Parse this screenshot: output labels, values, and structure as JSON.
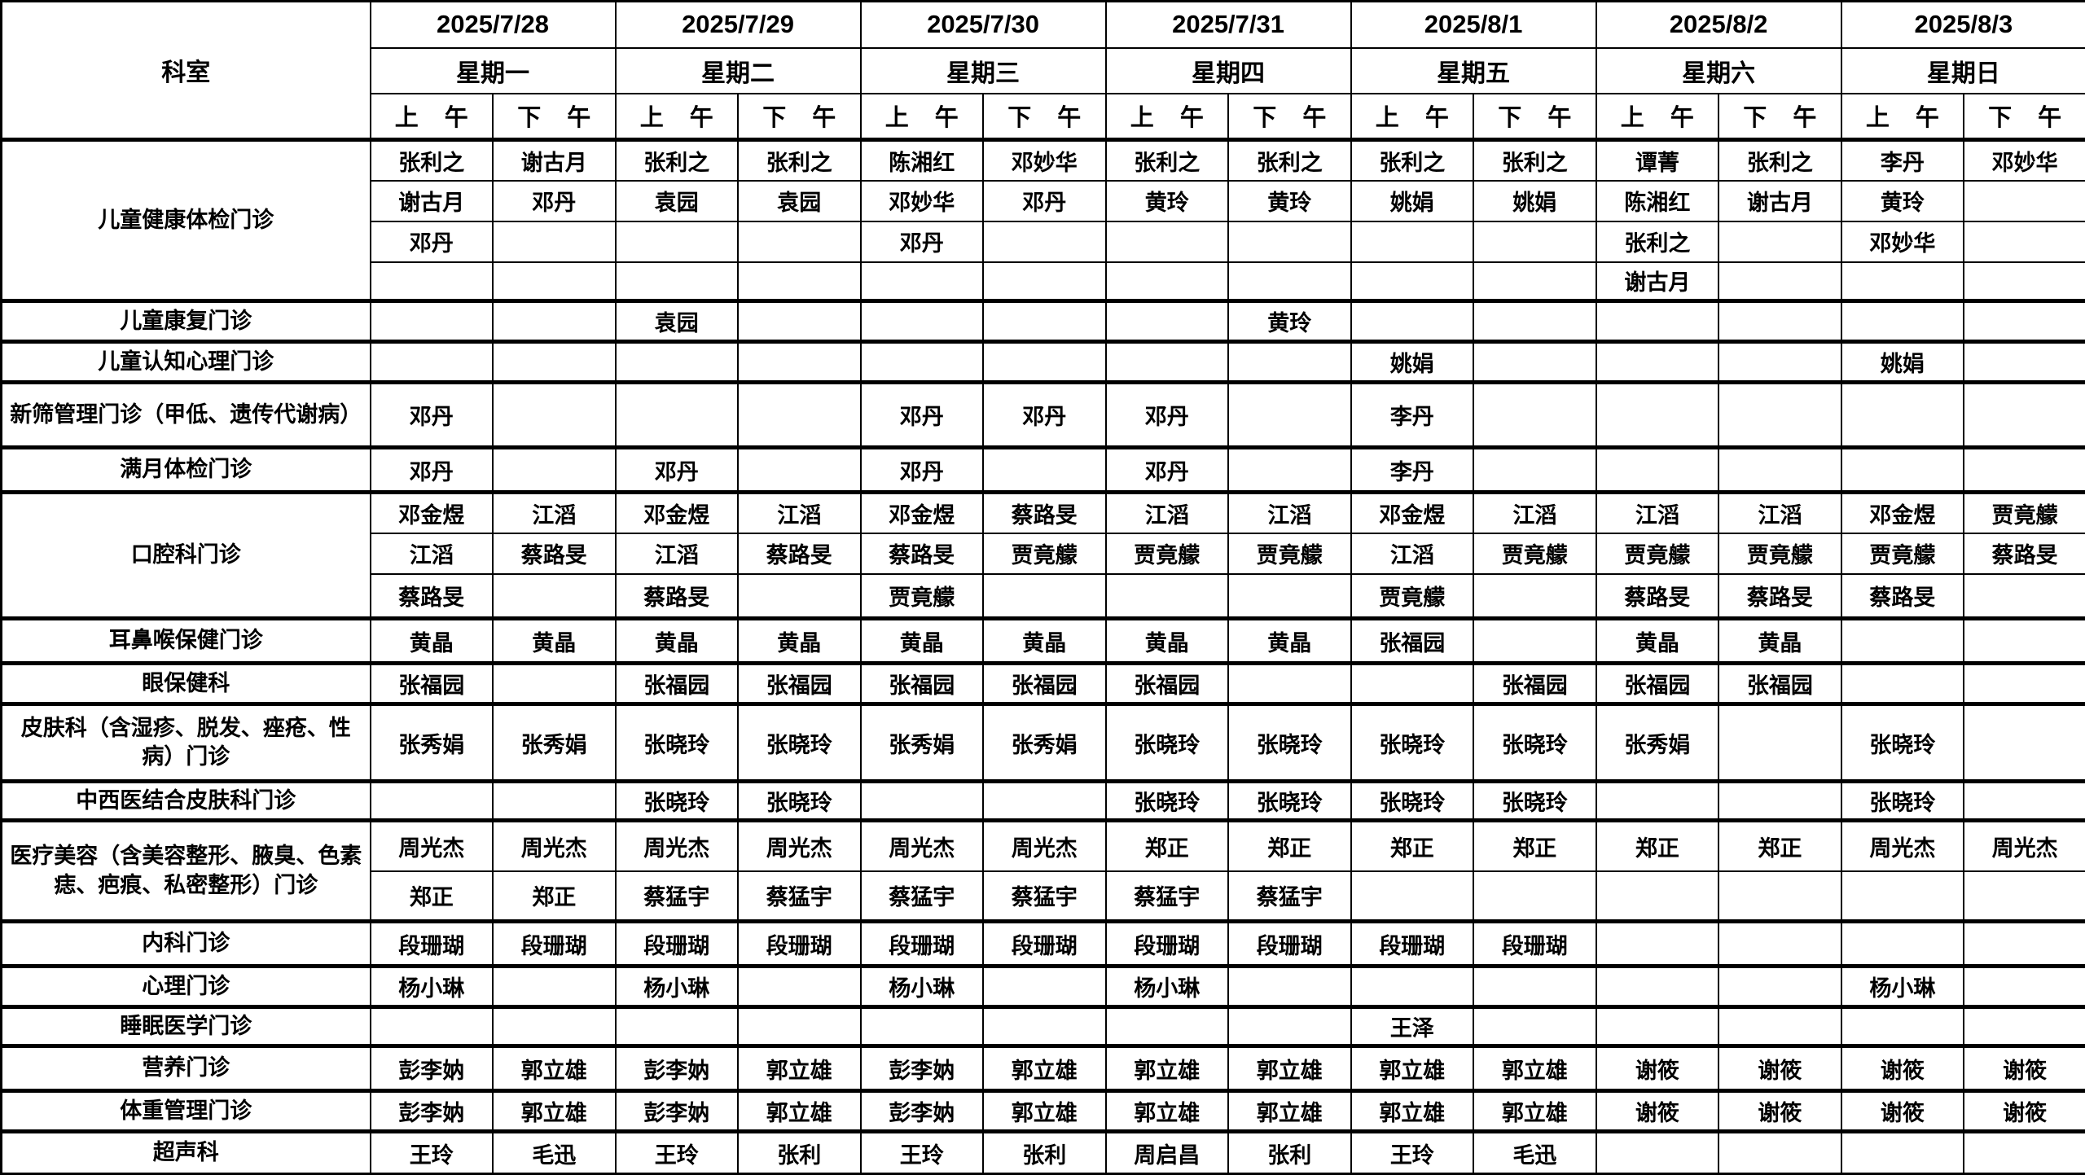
{
  "header": {
    "dept_label": "科室",
    "am_label": "上 午",
    "pm_label": "下 午",
    "days": [
      {
        "date": "2025/7/28",
        "weekday": "星期一"
      },
      {
        "date": "2025/7/29",
        "weekday": "星期二"
      },
      {
        "date": "2025/7/30",
        "weekday": "星期三"
      },
      {
        "date": "2025/7/31",
        "weekday": "星期四"
      },
      {
        "date": "2025/8/1",
        "weekday": "星期五"
      },
      {
        "date": "2025/8/2",
        "weekday": "星期六"
      },
      {
        "date": "2025/8/3",
        "weekday": "星期日"
      }
    ]
  },
  "schedule": {
    "groups": [
      {
        "dept": "儿童健康体检门诊",
        "rows": [
          [
            "张利之",
            "谢古月",
            "张利之",
            "张利之",
            "陈湘红",
            "邓妙华",
            "张利之",
            "张利之",
            "张利之",
            "张利之",
            "谭菁",
            "张利之",
            "李丹",
            "邓妙华"
          ],
          [
            "谢古月",
            "邓丹",
            "袁园",
            "袁园",
            "邓妙华",
            "邓丹",
            "黄玲",
            "黄玲",
            "姚娟",
            "姚娟",
            "陈湘红",
            "谢古月",
            "黄玲",
            ""
          ],
          [
            "邓丹",
            "",
            "",
            "",
            "邓丹",
            "",
            "",
            "",
            "",
            "",
            "张利之",
            "",
            "邓妙华",
            ""
          ],
          [
            "",
            "",
            "",
            "",
            "",
            "",
            "",
            "",
            "",
            "",
            "谢古月",
            "",
            "",
            ""
          ]
        ]
      },
      {
        "dept": "儿童康复门诊",
        "rows": [
          [
            "",
            "",
            "袁园",
            "",
            "",
            "",
            "",
            "黄玲",
            "",
            "",
            "",
            "",
            "",
            ""
          ]
        ]
      },
      {
        "dept": "儿童认知心理门诊",
        "rows": [
          [
            "",
            "",
            "",
            "",
            "",
            "",
            "",
            "",
            "姚娟",
            "",
            "",
            "",
            "姚娟",
            ""
          ]
        ]
      },
      {
        "dept": "新筛管理门诊（甲低、遗传代谢病）",
        "rows": [
          [
            "邓丹",
            "",
            "",
            "",
            "邓丹",
            "邓丹",
            "邓丹",
            "",
            "李丹",
            "",
            "",
            "",
            "",
            ""
          ]
        ]
      },
      {
        "dept": "满月体检门诊",
        "rows": [
          [
            "邓丹",
            "",
            "邓丹",
            "",
            "邓丹",
            "",
            "邓丹",
            "",
            "李丹",
            "",
            "",
            "",
            "",
            ""
          ]
        ]
      },
      {
        "dept": "口腔科门诊",
        "rows": [
          [
            "邓金煜",
            "江滔",
            "邓金煜",
            "江滔",
            "邓金煜",
            "蔡路旻",
            "江滔",
            "江滔",
            "邓金煜",
            "江滔",
            "江滔",
            "江滔",
            "邓金煜",
            "贾竟艨"
          ],
          [
            "江滔",
            "蔡路旻",
            "江滔",
            "蔡路旻",
            "蔡路旻",
            "贾竟艨",
            "贾竟艨",
            "贾竟艨",
            "江滔",
            "贾竟艨",
            "贾竟艨",
            "贾竟艨",
            "贾竟艨",
            "蔡路旻"
          ],
          [
            "蔡路旻",
            "",
            "蔡路旻",
            "",
            "贾竟艨",
            "",
            "",
            "",
            "贾竟艨",
            "",
            "蔡路旻",
            "蔡路旻",
            "蔡路旻",
            ""
          ]
        ]
      },
      {
        "dept": "耳鼻喉保健门诊",
        "rows": [
          [
            "黄晶",
            "黄晶",
            "黄晶",
            "黄晶",
            "黄晶",
            "黄晶",
            "黄晶",
            "黄晶",
            "张福园",
            "",
            "黄晶",
            "黄晶",
            "",
            ""
          ]
        ]
      },
      {
        "dept": "眼保健科",
        "rows": [
          [
            "张福园",
            "",
            "张福园",
            "张福园",
            "张福园",
            "张福园",
            "张福园",
            "",
            "",
            "张福园",
            "张福园",
            "张福园",
            "",
            ""
          ]
        ]
      },
      {
        "dept": "皮肤科（含湿疹、脱发、痤疮、性病）门诊",
        "rows": [
          [
            "张秀娟",
            "张秀娟",
            "张晓玲",
            "张晓玲",
            "张秀娟",
            "张秀娟",
            "张晓玲",
            "张晓玲",
            "张晓玲",
            "张晓玲",
            "张秀娟",
            "",
            "张晓玲",
            ""
          ]
        ]
      },
      {
        "dept": "中西医结合皮肤科门诊",
        "rows": [
          [
            "",
            "",
            "张晓玲",
            "张晓玲",
            "",
            "",
            "张晓玲",
            "张晓玲",
            "张晓玲",
            "张晓玲",
            "",
            "",
            "张晓玲",
            ""
          ]
        ]
      },
      {
        "dept": "医疗美容（含美容整形、腋臭、色素痣、疤痕、私密整形）门诊",
        "rows": [
          [
            "周光杰",
            "周光杰",
            "周光杰",
            "周光杰",
            "周光杰",
            "周光杰",
            "郑正",
            "郑正",
            "郑正",
            "郑正",
            "郑正",
            "郑正",
            "周光杰",
            "周光杰"
          ],
          [
            "郑正",
            "郑正",
            "蔡猛宇",
            "蔡猛宇",
            "蔡猛宇",
            "蔡猛宇",
            "蔡猛宇",
            "蔡猛宇",
            "",
            "",
            "",
            "",
            "",
            ""
          ]
        ]
      },
      {
        "dept": "内科门诊",
        "rows": [
          [
            "段珊瑚",
            "段珊瑚",
            "段珊瑚",
            "段珊瑚",
            "段珊瑚",
            "段珊瑚",
            "段珊瑚",
            "段珊瑚",
            "段珊瑚",
            "段珊瑚",
            "",
            "",
            "",
            ""
          ]
        ]
      },
      {
        "dept": "心理门诊",
        "rows": [
          [
            "杨小琳",
            "",
            "杨小琳",
            "",
            "杨小琳",
            "",
            "杨小琳",
            "",
            "",
            "",
            "",
            "",
            "杨小琳",
            ""
          ]
        ]
      },
      {
        "dept": "睡眠医学门诊",
        "rows": [
          [
            "",
            "",
            "",
            "",
            "",
            "",
            "",
            "",
            "王泽",
            "",
            "",
            "",
            "",
            ""
          ]
        ]
      },
      {
        "dept": "营养门诊",
        "rows": [
          [
            "彭李妠",
            "郭立雄",
            "彭李妠",
            "郭立雄",
            "彭李妠",
            "郭立雄",
            "郭立雄",
            "郭立雄",
            "郭立雄",
            "郭立雄",
            "谢筱",
            "谢筱",
            "谢筱",
            "谢筱"
          ]
        ]
      },
      {
        "dept": "体重管理门诊",
        "rows": [
          [
            "彭李妠",
            "郭立雄",
            "彭李妠",
            "郭立雄",
            "彭李妠",
            "郭立雄",
            "郭立雄",
            "郭立雄",
            "郭立雄",
            "郭立雄",
            "谢筱",
            "谢筱",
            "谢筱",
            "谢筱"
          ]
        ]
      },
      {
        "dept": "超声科",
        "rows": [
          [
            "王玲",
            "毛迅",
            "王玲",
            "张利",
            "王玲",
            "张利",
            "周启昌",
            "张利",
            "王玲",
            "毛迅",
            "",
            "",
            "",
            ""
          ]
        ]
      }
    ]
  }
}
